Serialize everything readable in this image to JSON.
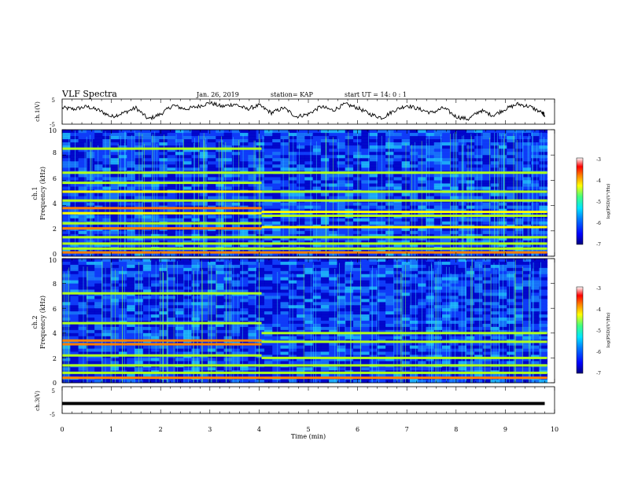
{
  "header": {
    "title": "VLF Spectra",
    "date": "Jan. 26, 2019",
    "station": "station= KAP",
    "start": "start  UT =  14: 0  : 1"
  },
  "colors": {
    "colormap": [
      "#00007f",
      "#0000ff",
      "#0080ff",
      "#00e5ff",
      "#40ff80",
      "#b0ff20",
      "#ffff00",
      "#ff8000",
      "#ff0000",
      "#ffffff"
    ],
    "trace": "#000000",
    "background": "#ffffff"
  },
  "chart_data": [
    {
      "type": "line",
      "panel": "ch1_waveform",
      "ylabel": "ch.1(V)",
      "ylim": [
        -5,
        5
      ],
      "yticks": [
        "5",
        "-5"
      ],
      "xlim": [
        0,
        10
      ],
      "x": [
        0,
        0.25,
        0.5,
        0.75,
        1,
        1.25,
        1.5,
        1.75,
        2,
        2.25,
        2.5,
        2.75,
        3,
        3.25,
        3.5,
        3.75,
        4,
        4.25,
        4.5,
        4.75,
        5,
        5.25,
        5.5,
        5.75,
        6,
        6.25,
        6.5,
        6.75,
        7,
        7.25,
        7.5,
        7.75,
        8,
        8.25,
        8.5,
        8.75,
        9,
        9.25,
        9.5,
        9.75,
        9.8
      ],
      "y": [
        1.5,
        1.0,
        2.0,
        0.5,
        -2.0,
        -0.5,
        1.5,
        -3.0,
        -1.0,
        2.5,
        1.0,
        2.0,
        3.5,
        2.0,
        3.0,
        1.0,
        2.5,
        -0.5,
        1.5,
        -2.0,
        -1.0,
        2.0,
        0.5,
        3.0,
        1.5,
        -1.0,
        -2.5,
        0.5,
        2.5,
        1.0,
        -0.5,
        1.5,
        -2.0,
        -3.0,
        0.5,
        -1.5,
        1.0,
        3.0,
        2.0,
        -0.5,
        -1.5
      ]
    },
    {
      "type": "heatmap",
      "panel": "ch1_spectrogram",
      "ylabel": "ch.1",
      "ylabel2": "Frequency (kHz)",
      "ylim": [
        0,
        10
      ],
      "yticks": [
        "0",
        "2",
        "4",
        "6",
        "8",
        "10"
      ],
      "xlim": [
        0,
        10
      ],
      "colorbar": {
        "label": "log(PSD)(V²/Hz)",
        "range": [
          -7,
          -3
        ],
        "ticks": [
          "-3",
          "-4",
          "-5",
          "-6",
          "-7"
        ]
      },
      "bands_before_4min": [
        {
          "f": 0.3,
          "level": -3.6
        },
        {
          "f": 0.6,
          "level": -4.6
        },
        {
          "f": 1.0,
          "level": -4.3
        },
        {
          "f": 1.5,
          "level": -4.4
        },
        {
          "f": 2.2,
          "level": -3.5
        },
        {
          "f": 2.6,
          "level": -4.3
        },
        {
          "f": 3.4,
          "level": -3.8
        },
        {
          "f": 3.8,
          "level": -3.5
        },
        {
          "f": 4.4,
          "level": -4.6
        },
        {
          "f": 5.1,
          "level": -4.2
        },
        {
          "f": 5.8,
          "level": -4.6
        },
        {
          "f": 6.6,
          "level": -4.4
        },
        {
          "f": 8.5,
          "level": -4.7
        }
      ],
      "bands_after_4min": [
        {
          "f": 0.3,
          "level": -3.6
        },
        {
          "f": 0.6,
          "level": -4.6
        },
        {
          "f": 1.0,
          "level": -4.3
        },
        {
          "f": 1.5,
          "level": -4.4
        },
        {
          "f": 2.3,
          "level": -4.0
        },
        {
          "f": 3.2,
          "level": -4.6
        },
        {
          "f": 3.5,
          "level": -4.2
        },
        {
          "f": 4.4,
          "level": -4.6
        },
        {
          "f": 5.1,
          "level": -4.6
        },
        {
          "f": 6.6,
          "level": -4.5
        }
      ]
    },
    {
      "type": "heatmap",
      "panel": "ch2_spectrogram",
      "ylabel": "ch.2",
      "ylabel2": "Frequency (kHz)",
      "ylim": [
        0,
        10
      ],
      "yticks": [
        "0",
        "2",
        "4",
        "6",
        "8",
        "10"
      ],
      "xlim": [
        0,
        10
      ],
      "colorbar": {
        "label": "log(PSD)(V²/Hz)",
        "range": [
          -7,
          -3
        ],
        "ticks": [
          "-3",
          "-4",
          "-5",
          "-6",
          "-7"
        ]
      },
      "bands_before_4min": [
        {
          "f": 0.4,
          "level": -3.6
        },
        {
          "f": 0.8,
          "level": -4.6
        },
        {
          "f": 1.4,
          "level": -4.5
        },
        {
          "f": 2.2,
          "level": -4.5
        },
        {
          "f": 3.1,
          "level": -3.5
        },
        {
          "f": 3.4,
          "level": -3.6
        },
        {
          "f": 4.8,
          "level": -4.6
        },
        {
          "f": 7.2,
          "level": -4.7
        }
      ],
      "bands_after_4min": [
        {
          "f": 0.4,
          "level": -3.6
        },
        {
          "f": 0.8,
          "level": -4.6
        },
        {
          "f": 1.4,
          "level": -4.5
        },
        {
          "f": 2.0,
          "level": -4.5
        },
        {
          "f": 3.3,
          "level": -4.4
        },
        {
          "f": 4.0,
          "level": -4.7
        }
      ]
    },
    {
      "type": "line",
      "panel": "ch3_waveform",
      "ylabel": "ch.3(V)",
      "ylim": [
        -5,
        5
      ],
      "yticks": [
        "5",
        "-5"
      ],
      "xlim": [
        0,
        10
      ],
      "xlabel": "Time (min)",
      "xticks": [
        "0",
        "1",
        "2",
        "3",
        "4",
        "5",
        "6",
        "7",
        "8",
        "9",
        "10"
      ],
      "x": [
        0,
        9.8
      ],
      "y": [
        -1.3,
        -1.3
      ]
    }
  ]
}
